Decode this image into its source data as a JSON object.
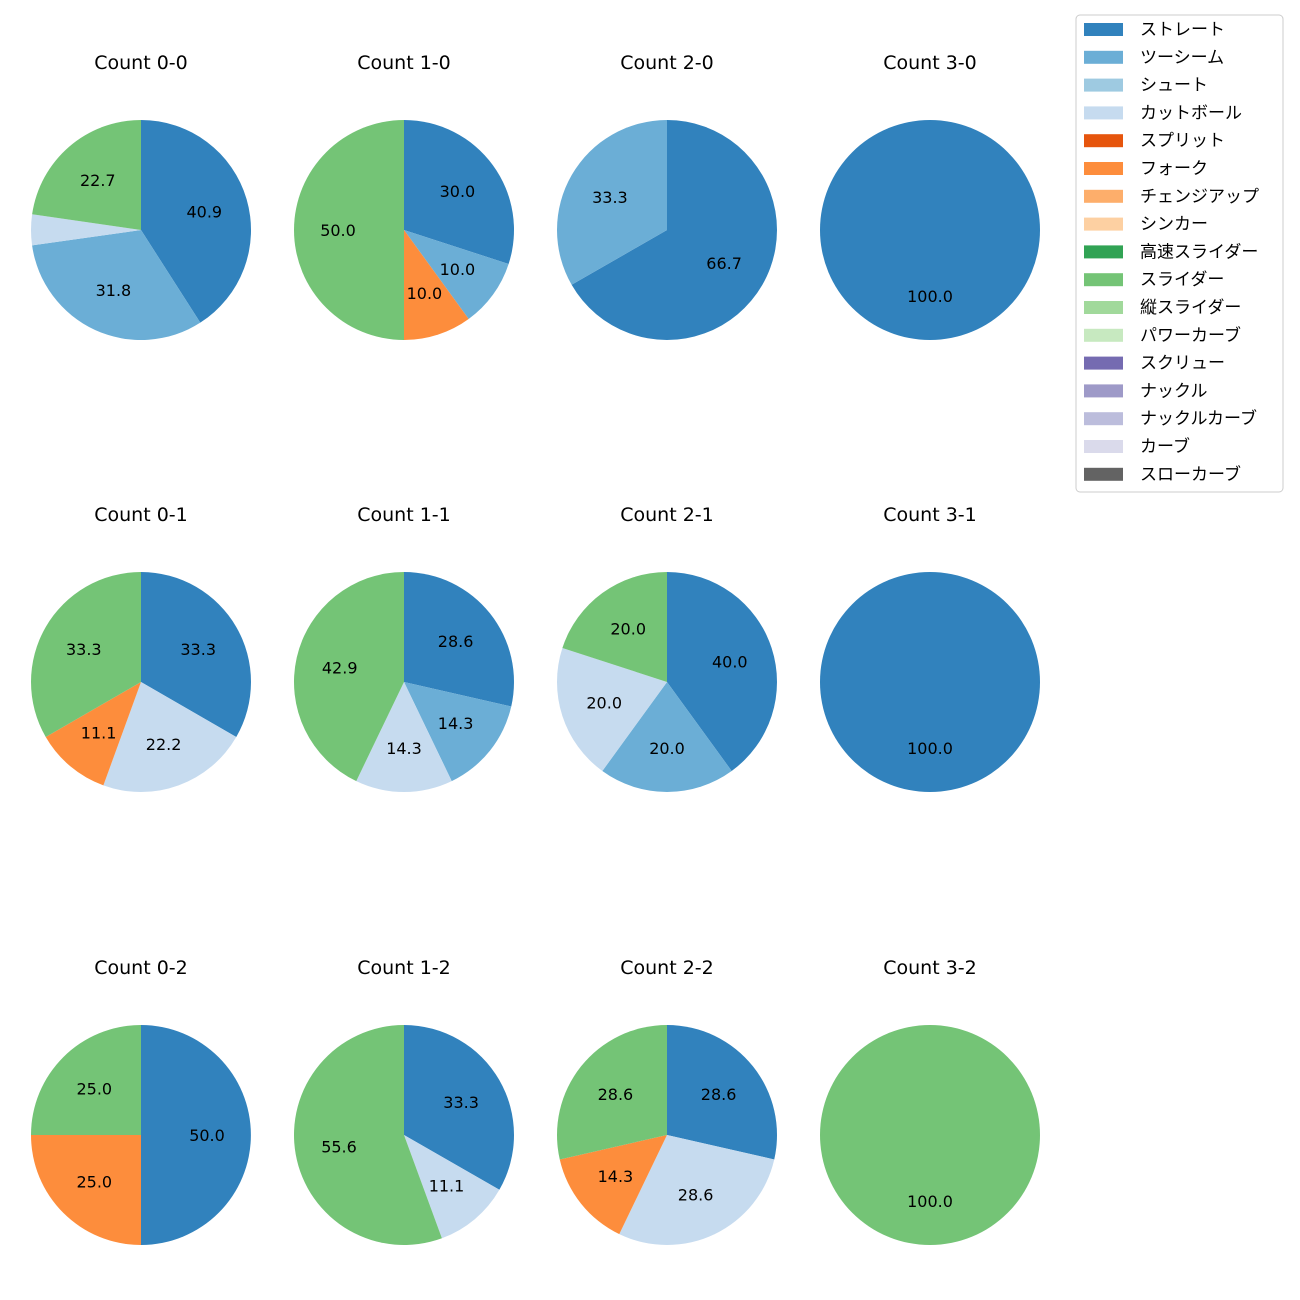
{
  "chart_data": {
    "type": "pie",
    "categories": [
      "ストレート",
      "ツーシーム",
      "シュート",
      "カットボール",
      "スプリット",
      "フォーク",
      "チェンジアップ",
      "シンカー",
      "高速スライダー",
      "スライダー",
      "縦スライダー",
      "パワーカーブ",
      "スクリュー",
      "ナックル",
      "ナックルカーブ",
      "カーブ",
      "スローカーブ"
    ],
    "colors": [
      "#3182bd",
      "#6baed6",
      "#9ecae1",
      "#c6dbef",
      "#e6550d",
      "#fd8d3c",
      "#fdae6b",
      "#fdd0a2",
      "#31a354",
      "#74c476",
      "#a1d99b",
      "#c7e9c0",
      "#756bb1",
      "#9e9ac8",
      "#bcbddc",
      "#dadaeb",
      "#636363"
    ],
    "legend": {
      "position": "top-right"
    },
    "subplots": [
      {
        "title": "Count 0-0",
        "slices": [
          {
            "category": "ストレート",
            "value": 40.9,
            "label": "40.9"
          },
          {
            "category": "ツーシーム",
            "value": 31.8,
            "label": "31.8"
          },
          {
            "category": "カットボール",
            "value": 4.5,
            "label": ""
          },
          {
            "category": "スライダー",
            "value": 22.7,
            "label": "22.7"
          }
        ]
      },
      {
        "title": "Count 1-0",
        "slices": [
          {
            "category": "ストレート",
            "value": 30.0,
            "label": "30.0"
          },
          {
            "category": "ツーシーム",
            "value": 10.0,
            "label": "10.0"
          },
          {
            "category": "フォーク",
            "value": 10.0,
            "label": "10.0"
          },
          {
            "category": "スライダー",
            "value": 50.0,
            "label": "50.0"
          }
        ]
      },
      {
        "title": "Count 2-0",
        "slices": [
          {
            "category": "ストレート",
            "value": 66.7,
            "label": "66.7"
          },
          {
            "category": "ツーシーム",
            "value": 33.3,
            "label": "33.3"
          }
        ]
      },
      {
        "title": "Count 3-0",
        "slices": [
          {
            "category": "ストレート",
            "value": 100.0,
            "label": "100.0"
          }
        ]
      },
      {
        "title": "Count 0-1",
        "slices": [
          {
            "category": "ストレート",
            "value": 33.3,
            "label": "33.3"
          },
          {
            "category": "カットボール",
            "value": 22.2,
            "label": "22.2"
          },
          {
            "category": "フォーク",
            "value": 11.1,
            "label": "11.1"
          },
          {
            "category": "スライダー",
            "value": 33.3,
            "label": "33.3"
          }
        ]
      },
      {
        "title": "Count 1-1",
        "slices": [
          {
            "category": "ストレート",
            "value": 28.6,
            "label": "28.6"
          },
          {
            "category": "ツーシーム",
            "value": 14.3,
            "label": "14.3"
          },
          {
            "category": "カットボール",
            "value": 14.3,
            "label": "14.3"
          },
          {
            "category": "スライダー",
            "value": 42.9,
            "label": "42.9"
          }
        ]
      },
      {
        "title": "Count 2-1",
        "slices": [
          {
            "category": "ストレート",
            "value": 40.0,
            "label": "40.0"
          },
          {
            "category": "ツーシーム",
            "value": 20.0,
            "label": "20.0"
          },
          {
            "category": "カットボール",
            "value": 20.0,
            "label": "20.0"
          },
          {
            "category": "スライダー",
            "value": 20.0,
            "label": "20.0"
          }
        ]
      },
      {
        "title": "Count 3-1",
        "slices": [
          {
            "category": "ストレート",
            "value": 100.0,
            "label": "100.0"
          }
        ]
      },
      {
        "title": "Count 0-2",
        "slices": [
          {
            "category": "ストレート",
            "value": 50.0,
            "label": "50.0"
          },
          {
            "category": "フォーク",
            "value": 25.0,
            "label": "25.0"
          },
          {
            "category": "スライダー",
            "value": 25.0,
            "label": "25.0"
          }
        ]
      },
      {
        "title": "Count 1-2",
        "slices": [
          {
            "category": "ストレート",
            "value": 33.3,
            "label": "33.3"
          },
          {
            "category": "カットボール",
            "value": 11.1,
            "label": "11.1"
          },
          {
            "category": "スライダー",
            "value": 55.6,
            "label": "55.6"
          }
        ]
      },
      {
        "title": "Count 2-2",
        "slices": [
          {
            "category": "ストレート",
            "value": 28.6,
            "label": "28.6"
          },
          {
            "category": "カットボール",
            "value": 28.6,
            "label": "28.6"
          },
          {
            "category": "フォーク",
            "value": 14.3,
            "label": "14.3"
          },
          {
            "category": "スライダー",
            "value": 28.6,
            "label": "28.6"
          }
        ]
      },
      {
        "title": "Count 3-2",
        "slices": [
          {
            "category": "スライダー",
            "value": 100.0,
            "label": "100.0"
          }
        ]
      }
    ]
  }
}
